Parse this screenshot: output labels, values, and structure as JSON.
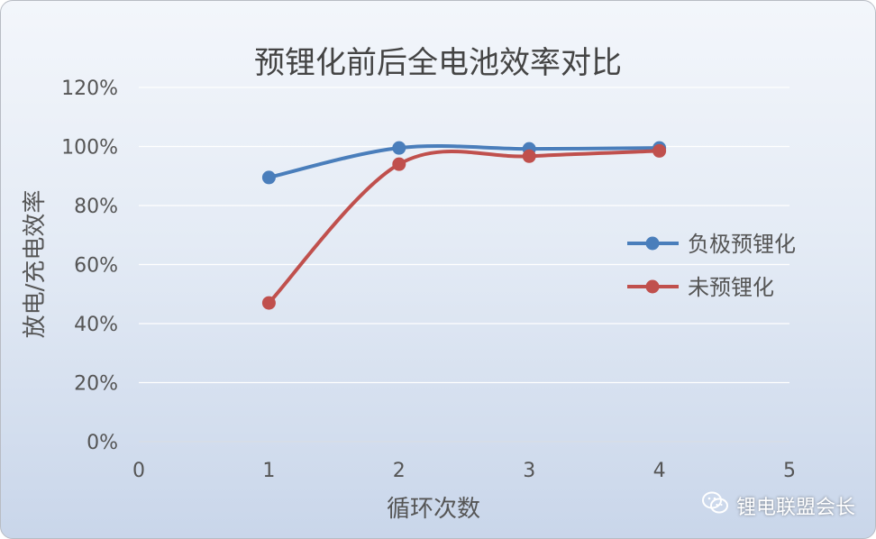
{
  "chart_data": {
    "type": "line",
    "title": "预锂化前后全电池效率对比",
    "xlabel": "循环次数",
    "ylabel": "放电/充电效率",
    "xlim": [
      0,
      5
    ],
    "ylim": [
      0,
      120
    ],
    "x_ticks": [
      "0",
      "1",
      "2",
      "3",
      "4",
      "5"
    ],
    "y_ticks": [
      "0%",
      "20%",
      "40%",
      "60%",
      "80%",
      "100%",
      "120%"
    ],
    "grid": "horizontal",
    "legend_position": "right",
    "smooth": true,
    "series": [
      {
        "name": "负极预锂化",
        "color": "#4a7ebb",
        "x": [
          1,
          2,
          3,
          4
        ],
        "y": [
          89.5,
          99.5,
          99.2,
          99.5
        ]
      },
      {
        "name": "未预锂化",
        "color": "#c0504d",
        "x": [
          1,
          2,
          3,
          4
        ],
        "y": [
          47,
          94,
          96.7,
          98.5
        ]
      }
    ]
  },
  "watermark": {
    "text": "锂电联盟会长",
    "icon": "wechat-icon"
  }
}
